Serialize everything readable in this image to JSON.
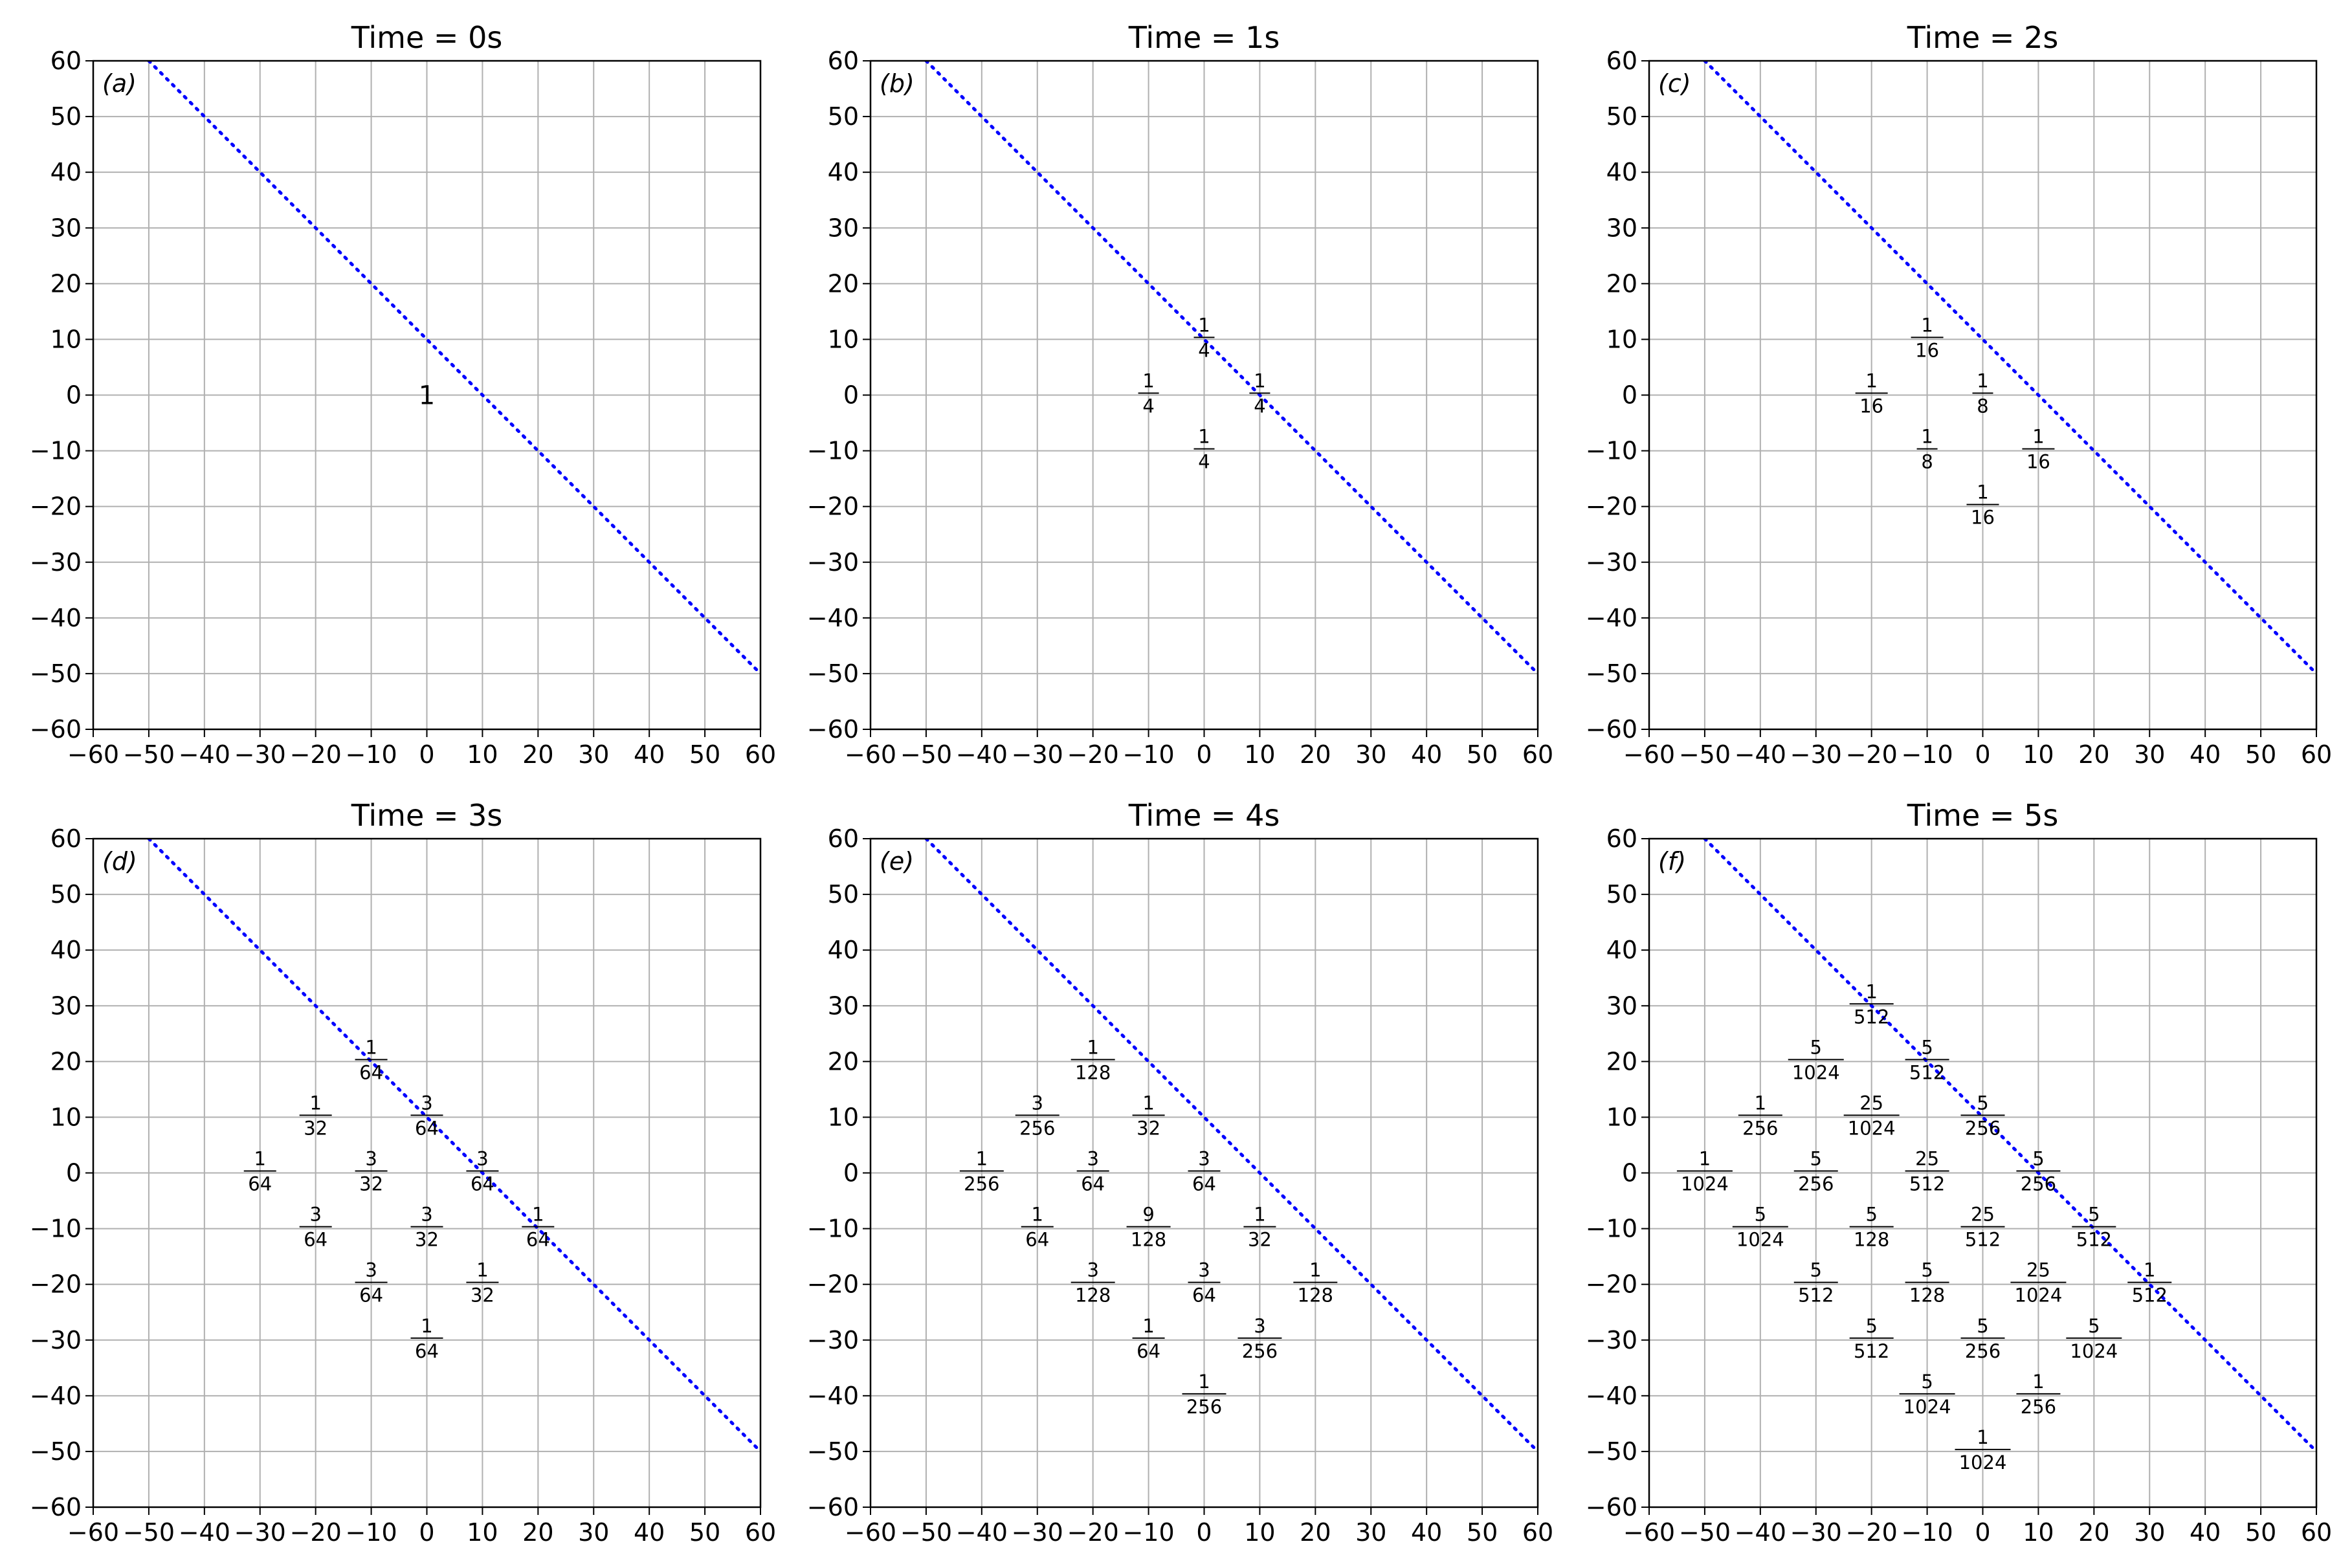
{
  "chart_data": [
    {
      "type": "scatter",
      "panel_label": "(a)",
      "title": "Time = 0s",
      "xlim": [
        -60,
        60
      ],
      "ylim": [
        -60,
        60
      ],
      "xticks": [
        -60,
        -50,
        -40,
        -30,
        -20,
        -10,
        0,
        10,
        20,
        30,
        40,
        50,
        60
      ],
      "yticks": [
        -60,
        -50,
        -40,
        -30,
        -20,
        -10,
        0,
        10,
        20,
        30,
        40,
        50,
        60
      ],
      "grid": true,
      "boundary_line": {
        "style": "dotted",
        "color": "#0000ff",
        "from": [
          -50,
          60
        ],
        "to": [
          60,
          -50
        ]
      },
      "points": [
        {
          "x": 0,
          "y": 0,
          "label": "1"
        }
      ]
    },
    {
      "type": "scatter",
      "panel_label": "(b)",
      "title": "Time = 1s",
      "xlim": [
        -60,
        60
      ],
      "ylim": [
        -60,
        60
      ],
      "xticks": [
        -60,
        -50,
        -40,
        -30,
        -20,
        -10,
        0,
        10,
        20,
        30,
        40,
        50,
        60
      ],
      "yticks": [
        -60,
        -50,
        -40,
        -30,
        -20,
        -10,
        0,
        10,
        20,
        30,
        40,
        50,
        60
      ],
      "grid": true,
      "boundary_line": {
        "style": "dotted",
        "color": "#0000ff",
        "from": [
          -50,
          60
        ],
        "to": [
          60,
          -50
        ]
      },
      "points": [
        {
          "x": 0,
          "y": 10,
          "label": "1/4"
        },
        {
          "x": -10,
          "y": 0,
          "label": "1/4"
        },
        {
          "x": 10,
          "y": 0,
          "label": "1/4"
        },
        {
          "x": 0,
          "y": -10,
          "label": "1/4"
        }
      ]
    },
    {
      "type": "scatter",
      "panel_label": "(c)",
      "title": "Time = 2s",
      "xlim": [
        -60,
        60
      ],
      "ylim": [
        -60,
        60
      ],
      "xticks": [
        -60,
        -50,
        -40,
        -30,
        -20,
        -10,
        0,
        10,
        20,
        30,
        40,
        50,
        60
      ],
      "yticks": [
        -60,
        -50,
        -40,
        -30,
        -20,
        -10,
        0,
        10,
        20,
        30,
        40,
        50,
        60
      ],
      "grid": true,
      "boundary_line": {
        "style": "dotted",
        "color": "#0000ff",
        "from": [
          -50,
          60
        ],
        "to": [
          60,
          -50
        ]
      },
      "points": [
        {
          "x": -10,
          "y": 10,
          "label": "1/16"
        },
        {
          "x": -20,
          "y": 0,
          "label": "1/16"
        },
        {
          "x": 0,
          "y": 0,
          "label": "1/8"
        },
        {
          "x": -10,
          "y": -10,
          "label": "1/8"
        },
        {
          "x": 10,
          "y": -10,
          "label": "1/16"
        },
        {
          "x": 0,
          "y": -20,
          "label": "1/16"
        }
      ]
    },
    {
      "type": "scatter",
      "panel_label": "(d)",
      "title": "Time = 3s",
      "xlim": [
        -60,
        60
      ],
      "ylim": [
        -60,
        60
      ],
      "xticks": [
        -60,
        -50,
        -40,
        -30,
        -20,
        -10,
        0,
        10,
        20,
        30,
        40,
        50,
        60
      ],
      "yticks": [
        -60,
        -50,
        -40,
        -30,
        -20,
        -10,
        0,
        10,
        20,
        30,
        40,
        50,
        60
      ],
      "grid": true,
      "boundary_line": {
        "style": "dotted",
        "color": "#0000ff",
        "from": [
          -50,
          60
        ],
        "to": [
          60,
          -50
        ]
      },
      "points": [
        {
          "x": -10,
          "y": 20,
          "label": "1/64"
        },
        {
          "x": -20,
          "y": 10,
          "label": "1/32"
        },
        {
          "x": 0,
          "y": 10,
          "label": "3/64"
        },
        {
          "x": -30,
          "y": 0,
          "label": "1/64"
        },
        {
          "x": -10,
          "y": 0,
          "label": "3/32"
        },
        {
          "x": 10,
          "y": 0,
          "label": "3/64"
        },
        {
          "x": -20,
          "y": -10,
          "label": "3/64"
        },
        {
          "x": 0,
          "y": -10,
          "label": "3/32"
        },
        {
          "x": 20,
          "y": -10,
          "label": "1/64"
        },
        {
          "x": -10,
          "y": -20,
          "label": "3/64"
        },
        {
          "x": 10,
          "y": -20,
          "label": "1/32"
        },
        {
          "x": 0,
          "y": -30,
          "label": "1/64"
        }
      ]
    },
    {
      "type": "scatter",
      "panel_label": "(e)",
      "title": "Time = 4s",
      "xlim": [
        -60,
        60
      ],
      "ylim": [
        -60,
        60
      ],
      "xticks": [
        -60,
        -50,
        -40,
        -30,
        -20,
        -10,
        0,
        10,
        20,
        30,
        40,
        50,
        60
      ],
      "yticks": [
        -60,
        -50,
        -40,
        -30,
        -20,
        -10,
        0,
        10,
        20,
        30,
        40,
        50,
        60
      ],
      "grid": true,
      "boundary_line": {
        "style": "dotted",
        "color": "#0000ff",
        "from": [
          -50,
          60
        ],
        "to": [
          60,
          -50
        ]
      },
      "points": [
        {
          "x": -20,
          "y": 20,
          "label": "1/128"
        },
        {
          "x": -30,
          "y": 10,
          "label": "3/256"
        },
        {
          "x": -10,
          "y": 10,
          "label": "1/32"
        },
        {
          "x": -40,
          "y": 0,
          "label": "1/256"
        },
        {
          "x": -20,
          "y": 0,
          "label": "3/64"
        },
        {
          "x": 0,
          "y": 0,
          "label": "3/64"
        },
        {
          "x": -30,
          "y": -10,
          "label": "1/64"
        },
        {
          "x": -10,
          "y": -10,
          "label": "9/128"
        },
        {
          "x": 10,
          "y": -10,
          "label": "1/32"
        },
        {
          "x": -20,
          "y": -20,
          "label": "3/128"
        },
        {
          "x": 0,
          "y": -20,
          "label": "3/64"
        },
        {
          "x": 20,
          "y": -20,
          "label": "1/128"
        },
        {
          "x": -10,
          "y": -30,
          "label": "1/64"
        },
        {
          "x": 10,
          "y": -30,
          "label": "3/256"
        },
        {
          "x": 0,
          "y": -40,
          "label": "1/256"
        }
      ]
    },
    {
      "type": "scatter",
      "panel_label": "(f)",
      "title": "Time = 5s",
      "xlim": [
        -60,
        60
      ],
      "ylim": [
        -60,
        60
      ],
      "xticks": [
        -60,
        -50,
        -40,
        -30,
        -20,
        -10,
        0,
        10,
        20,
        30,
        40,
        50,
        60
      ],
      "yticks": [
        -60,
        -50,
        -40,
        -30,
        -20,
        -10,
        0,
        10,
        20,
        30,
        40,
        50,
        60
      ],
      "grid": true,
      "boundary_line": {
        "style": "dotted",
        "color": "#0000ff",
        "from": [
          -50,
          60
        ],
        "to": [
          60,
          -50
        ]
      },
      "points": [
        {
          "x": -20,
          "y": 30,
          "label": "1/512"
        },
        {
          "x": -30,
          "y": 20,
          "label": "5/1024"
        },
        {
          "x": -10,
          "y": 20,
          "label": "5/512"
        },
        {
          "x": -40,
          "y": 10,
          "label": "1/256"
        },
        {
          "x": -20,
          "y": 10,
          "label": "25/1024"
        },
        {
          "x": 0,
          "y": 10,
          "label": "5/256"
        },
        {
          "x": -50,
          "y": 0,
          "label": "1/1024"
        },
        {
          "x": -30,
          "y": 0,
          "label": "5/256"
        },
        {
          "x": -10,
          "y": 0,
          "label": "25/512"
        },
        {
          "x": 10,
          "y": 0,
          "label": "5/256"
        },
        {
          "x": -40,
          "y": -10,
          "label": "5/1024"
        },
        {
          "x": -20,
          "y": -10,
          "label": "5/128"
        },
        {
          "x": 0,
          "y": -10,
          "label": "25/512"
        },
        {
          "x": 20,
          "y": -10,
          "label": "5/512"
        },
        {
          "x": -30,
          "y": -20,
          "label": "5/512"
        },
        {
          "x": -10,
          "y": -20,
          "label": "5/128"
        },
        {
          "x": 10,
          "y": -20,
          "label": "25/1024"
        },
        {
          "x": 30,
          "y": -20,
          "label": "1/512"
        },
        {
          "x": -20,
          "y": -30,
          "label": "5/512"
        },
        {
          "x": 0,
          "y": -30,
          "label": "5/256"
        },
        {
          "x": 20,
          "y": -30,
          "label": "5/1024"
        },
        {
          "x": -10,
          "y": -40,
          "label": "5/1024"
        },
        {
          "x": 10,
          "y": -40,
          "label": "1/256"
        },
        {
          "x": 0,
          "y": -50,
          "label": "1/1024"
        }
      ]
    }
  ]
}
